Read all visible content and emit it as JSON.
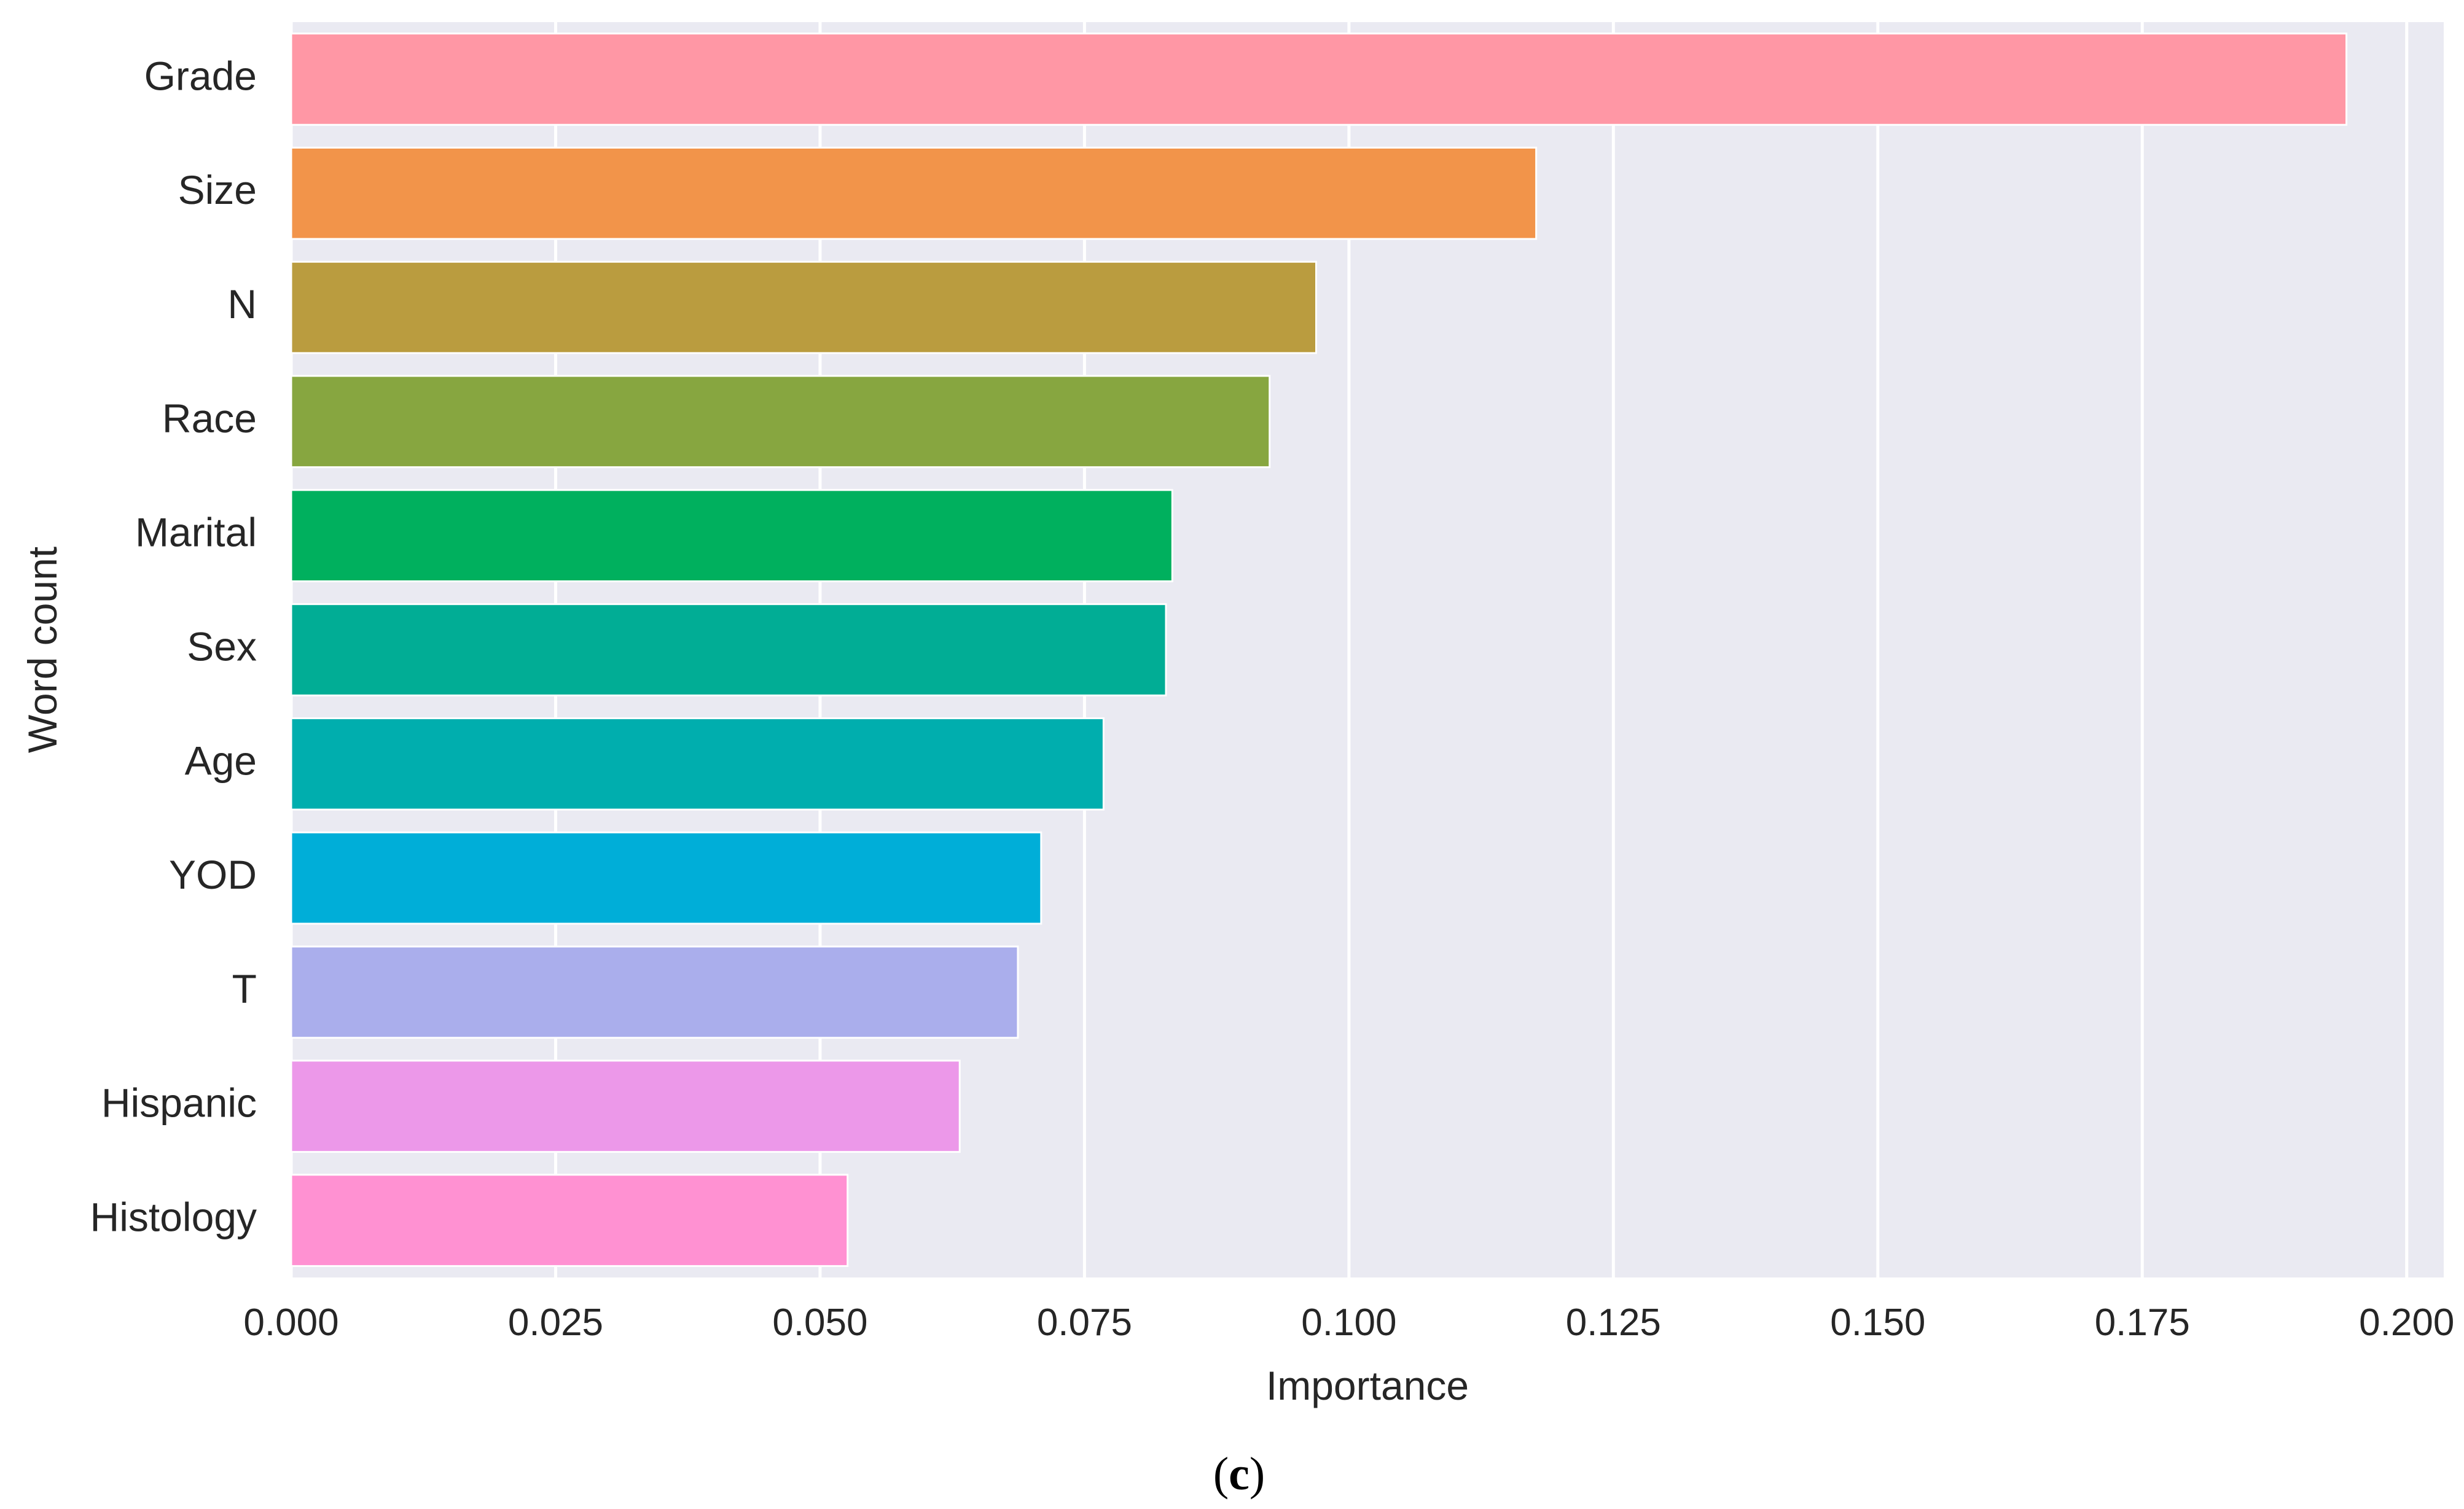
{
  "chart_data": {
    "type": "bar",
    "orientation": "horizontal",
    "title": "",
    "xlabel": "Importance",
    "ylabel": "Word count",
    "xlim": [
      0,
      0.2035
    ],
    "xticks": [
      0.0,
      0.025,
      0.05,
      0.075,
      0.1,
      0.125,
      0.15,
      0.175,
      0.2
    ],
    "xtick_labels": [
      "0.000",
      "0.025",
      "0.050",
      "0.075",
      "0.100",
      "0.125",
      "0.150",
      "0.175",
      "0.200"
    ],
    "grid": true,
    "categories": [
      "Grade",
      "Size",
      "N",
      "Race",
      "Marital",
      "Sex",
      "Age",
      "YOD",
      "T",
      "Hispanic",
      "Histology"
    ],
    "values": [
      0.1943,
      0.1177,
      0.0969,
      0.0925,
      0.0833,
      0.0827,
      0.0768,
      0.0709,
      0.0687,
      0.0632,
      0.0526
    ],
    "colors": [
      "#ff97a5",
      "#f2944a",
      "#ba9c3f",
      "#87a640",
      "#00b05e",
      "#01ad95",
      "#00aeae",
      "#00aed8",
      "#aaaeec",
      "#ec98e9",
      "#ff91d2"
    ],
    "background": "#eaeaf2",
    "gridline_color": "#ffffff",
    "caption": "(c)"
  }
}
